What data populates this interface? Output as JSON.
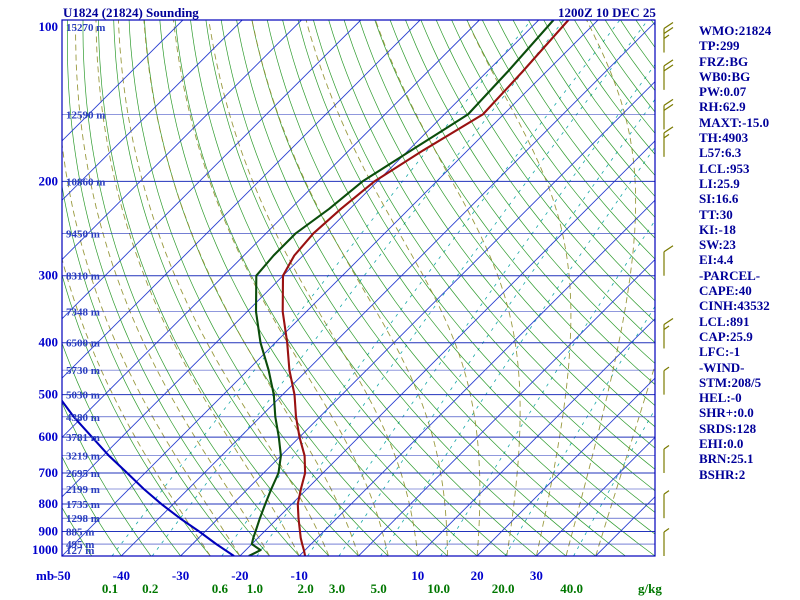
{
  "header": {
    "title": "U1824 (21824) Sounding",
    "datetime": "1200Z 10 DEC 25"
  },
  "stats_panel": {
    "lines": [
      "WMO:21824",
      "TP:299",
      "FRZ:BG",
      "WB0:BG",
      "PW:0.07",
      "RH:62.9",
      "MAXT:-15.0",
      "TH:4903",
      "L57:6.3",
      "LCL:953",
      "LI:25.9",
      "SI:16.6",
      "TT:30",
      "KI:-18",
      "SW:23",
      "EI:4.4",
      "-PARCEL-",
      "CAPE:40",
      "CINH:43532",
      "LCL:891",
      "CAP:25.9",
      "LFC:-1",
      "-WIND-",
      "STM:208/5",
      "HEL:-0",
      "SHR+:0.0",
      "SRDS:128",
      "EHI:0.0",
      "BRN:25.1",
      "BSHR:2"
    ]
  },
  "axes": {
    "pressure_unit_label": "mb",
    "pressure_ticks": [
      100,
      200,
      300,
      400,
      500,
      600,
      700,
      800,
      900,
      1000
    ],
    "height_levels_mb": [
      100,
      150,
      200,
      250,
      300,
      350,
      400,
      450,
      500,
      550,
      600,
      650,
      700,
      750,
      800,
      850,
      900,
      950,
      1000
    ],
    "height_labels": [
      "15270 m",
      "12590 m",
      "10860 m",
      "9450 m",
      "8310 m",
      "7348 m",
      "6500 m",
      "5730 m",
      "5030 m",
      "4380 m",
      "3781 m",
      "3219 m",
      "2695 m",
      "2199 m",
      "1735 m",
      "1298 m",
      "885 m",
      "495 m",
      "127 m"
    ],
    "temp_ticks_c": [
      -50,
      -40,
      -30,
      -20,
      -10,
      10,
      20,
      30
    ],
    "mixing_ratio_ticks": [
      0.1,
      0.2,
      0.6,
      1.0,
      2.0,
      3.0,
      5.0,
      10.0,
      20.0,
      40.0
    ],
    "mixing_ratio_unit_label": "g/kg"
  },
  "chart_data": {
    "type": "line",
    "subtype": "skew-t-log-p-sounding",
    "title": "U1824 (21824) Sounding",
    "x_axis_label": "Temperature (C, skewed)",
    "y_axis_label": "Pressure (mb, log scale)",
    "y_range": [
      100,
      1000
    ],
    "x_range_at_surface": [
      -50,
      50
    ],
    "series": [
      {
        "name": "temperature",
        "color": "#991111",
        "points": [
          [
            1000,
            -9
          ],
          [
            975,
            -10.2
          ],
          [
            950,
            -11.5
          ],
          [
            925,
            -12.8
          ],
          [
            900,
            -14
          ],
          [
            850,
            -16.5
          ],
          [
            800,
            -19
          ],
          [
            750,
            -21
          ],
          [
            700,
            -23
          ],
          [
            650,
            -26
          ],
          [
            600,
            -30
          ],
          [
            550,
            -34
          ],
          [
            500,
            -38
          ],
          [
            450,
            -43
          ],
          [
            400,
            -48
          ],
          [
            350,
            -54
          ],
          [
            300,
            -60
          ],
          [
            275,
            -61.5
          ],
          [
            250,
            -62
          ],
          [
            225,
            -61.5
          ],
          [
            200,
            -60.5
          ],
          [
            175,
            -57.5
          ],
          [
            150,
            -53.5
          ],
          [
            125,
            -54
          ],
          [
            100,
            -55
          ]
        ]
      },
      {
        "name": "dewpoint",
        "color": "#0b4d0b",
        "points": [
          [
            1000,
            -18.5
          ],
          [
            975,
            -17.5
          ],
          [
            950,
            -20
          ],
          [
            925,
            -20.8
          ],
          [
            900,
            -21.5
          ],
          [
            850,
            -23
          ],
          [
            800,
            -24.5
          ],
          [
            750,
            -26
          ],
          [
            700,
            -27.5
          ],
          [
            650,
            -30
          ],
          [
            600,
            -33.5
          ],
          [
            550,
            -37.5
          ],
          [
            500,
            -41.5
          ],
          [
            450,
            -46.5
          ],
          [
            400,
            -52.5
          ],
          [
            350,
            -58.5
          ],
          [
            300,
            -64.5
          ],
          [
            275,
            -65
          ],
          [
            250,
            -65
          ],
          [
            225,
            -63.5
          ],
          [
            200,
            -62.5
          ],
          [
            175,
            -59.5
          ],
          [
            150,
            -56
          ],
          [
            125,
            -56.5
          ],
          [
            100,
            -57.5
          ]
        ]
      },
      {
        "name": "wet-bulb",
        "color": "#0000bb",
        "points": [
          [
            1000,
            -21
          ],
          [
            950,
            -26
          ],
          [
            900,
            -31
          ],
          [
            850,
            -36.5
          ],
          [
            800,
            -42
          ],
          [
            750,
            -47.5
          ],
          [
            700,
            -53
          ],
          [
            650,
            -59
          ],
          [
            600,
            -65
          ],
          [
            550,
            -71.5
          ],
          [
            500,
            -78
          ],
          [
            460,
            -83.5
          ]
        ]
      }
    ],
    "wind_barbs": {
      "unit": "kt",
      "levels": [
        [
          115,
          25
        ],
        [
          135,
          20
        ],
        [
          160,
          20
        ],
        [
          180,
          15
        ],
        [
          300,
          10
        ],
        [
          410,
          15
        ],
        [
          500,
          5
        ],
        [
          700,
          5
        ],
        [
          850,
          5
        ],
        [
          1000,
          5
        ]
      ]
    },
    "background_lines": {
      "isotherms": {
        "min_c": -120,
        "max_c": 40,
        "step_c": 10,
        "color": "#2a3fd0"
      },
      "dry_adiabats": {
        "min_c": -50,
        "max_c": 200,
        "step_c": 5,
        "color": "#0a8a0a"
      },
      "moist_adiabats": {
        "min_c": -25,
        "max_c": 40,
        "step_c": 5,
        "color": "#8f8f2a"
      },
      "mixing_ratio_lines": {
        "values_gkg": [
          0.1,
          0.2,
          0.6,
          1.0,
          2.0,
          3.0,
          5.0,
          10.0,
          20.0,
          40.0
        ],
        "color": "#18a8a8"
      },
      "pressure_lines": {
        "levels_mb": [
          100,
          150,
          200,
          250,
          300,
          350,
          400,
          450,
          500,
          550,
          600,
          650,
          700,
          750,
          800,
          850,
          900,
          950,
          1000
        ],
        "color": "#2233bb"
      }
    },
    "colors": {
      "frame": "#0000bb",
      "axis_text": "#0000cc",
      "panel_text": "#000099",
      "mixing_label": "#007700",
      "wind_barb": "#7a7a00"
    }
  }
}
